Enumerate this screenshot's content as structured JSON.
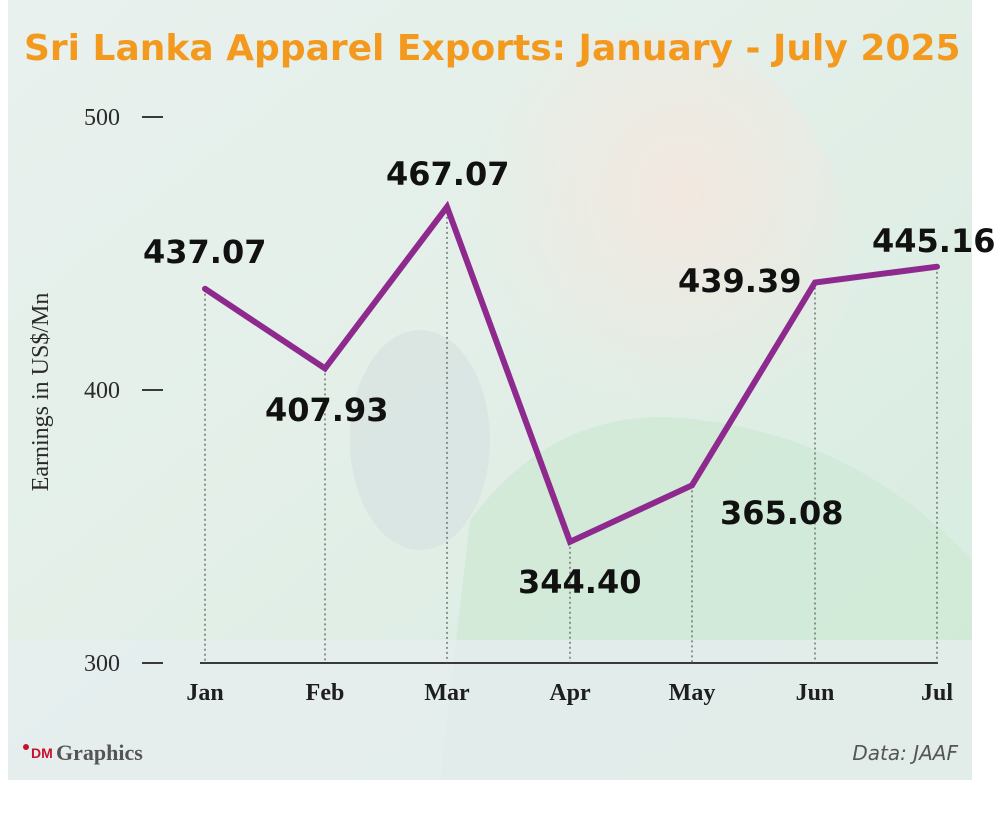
{
  "chart_data": {
    "type": "line",
    "title": "Sri Lanka Apparel Exports: January - July 2025",
    "ylabel": "Earnings in US$/Mn",
    "xlabel": "",
    "categories": [
      "Jan",
      "Feb",
      "Mar",
      "Apr",
      "May",
      "Jun",
      "Jul"
    ],
    "series": [
      {
        "values": [
          437.07,
          407.93,
          467.07,
          344.4,
          365.08,
          439.39,
          445.16
        ],
        "labels": [
          "437.07",
          "407.93",
          "467.07",
          "344.40",
          "365.08",
          "439.39",
          "445.16"
        ]
      }
    ],
    "yticks": [
      "300",
      "400",
      "500"
    ],
    "ylim": [
      300,
      500
    ],
    "grid": false,
    "legend": "none",
    "line_color": "#8e2a8e"
  },
  "footer": {
    "brand_prefix": "DM",
    "brand_name": "Graphics",
    "source": "Data: JAAF"
  }
}
